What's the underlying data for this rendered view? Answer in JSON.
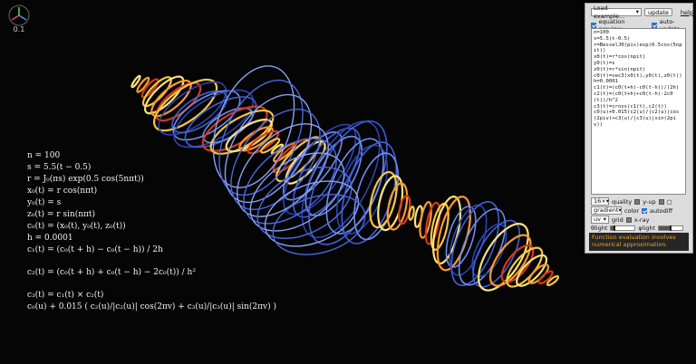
{
  "gizmo": {
    "version": "0.1",
    "icon": "axes-gizmo-icon"
  },
  "equations": [
    "n = 100",
    "s = 5.5(t − 0.5)",
    "r = J₀(πs) exp(0.5 cos(5nπt))",
    "x₀(t) = r cos(nπt)",
    "y₀(t) = s",
    "z₀(t) = r sin(nπt)",
    "c₀(t) = (x₀(t), y₀(t), z₀(t))",
    "h = 0.0001",
    "c₁(t) = (c₀(t + h) − c₀(t − h)) / 2h",
    "c₂(t) = (c₀(t + h) + c₀(t − h) − 2c₀(t)) / h²",
    "c₃(t) = c₁(t) × c₂(t)",
    "c₀(u) + 0.015 ( c₂(u)/|c₂(u)| cos(2πv) + c₃(u)/|c₃(u)| sin(2πv) )"
  ],
  "panel": {
    "example_select": "Load example...",
    "update_button": "update",
    "help_link": "help",
    "equation_preview_label": "equation preview",
    "auto_update_label": "auto-update",
    "code": "n=100\ns=5.5(t-0.5)\nr=BesselJ0(pis)exp(0.5cos(5npit))\nx0(t)=r*cos(npit)\ny0(t)=s\nz0(t)=r*sin(npit)\nc0(t)=vec3(x0(t),y0(t),z0(t))\nh=0.0001\nc1(t)=(c0(t+h)-c0(t-h))/(2h)\nc2(t)=(c0(t+h)+c0(t-h)-2c0(t))/h^2\nc3(t)=cross(c1(t),c2(t))\nc0(u)+0.015(c2(u)/|c2(u)|cos(2piv)+c3(u)/|c3(u)|sin(2piv))",
    "quality_select": "16×",
    "quality_label": "quality",
    "y_up_label": "y-up",
    "color_select": "gradient",
    "color_label": "color",
    "autodiff_label": "autodiff",
    "grid_select": "uv",
    "grid_label": "grid",
    "xray_label": "x-ray",
    "light1_label": "θlight",
    "light2_label": "φlight",
    "light1_value": 0.15,
    "light2_value": 0.5,
    "message": "Function evaluation involves numerical approximation."
  },
  "colors": {
    "accent": "#2a6fd6",
    "message_text": "#f0a030",
    "panel_bg": "#dcdcdc"
  }
}
